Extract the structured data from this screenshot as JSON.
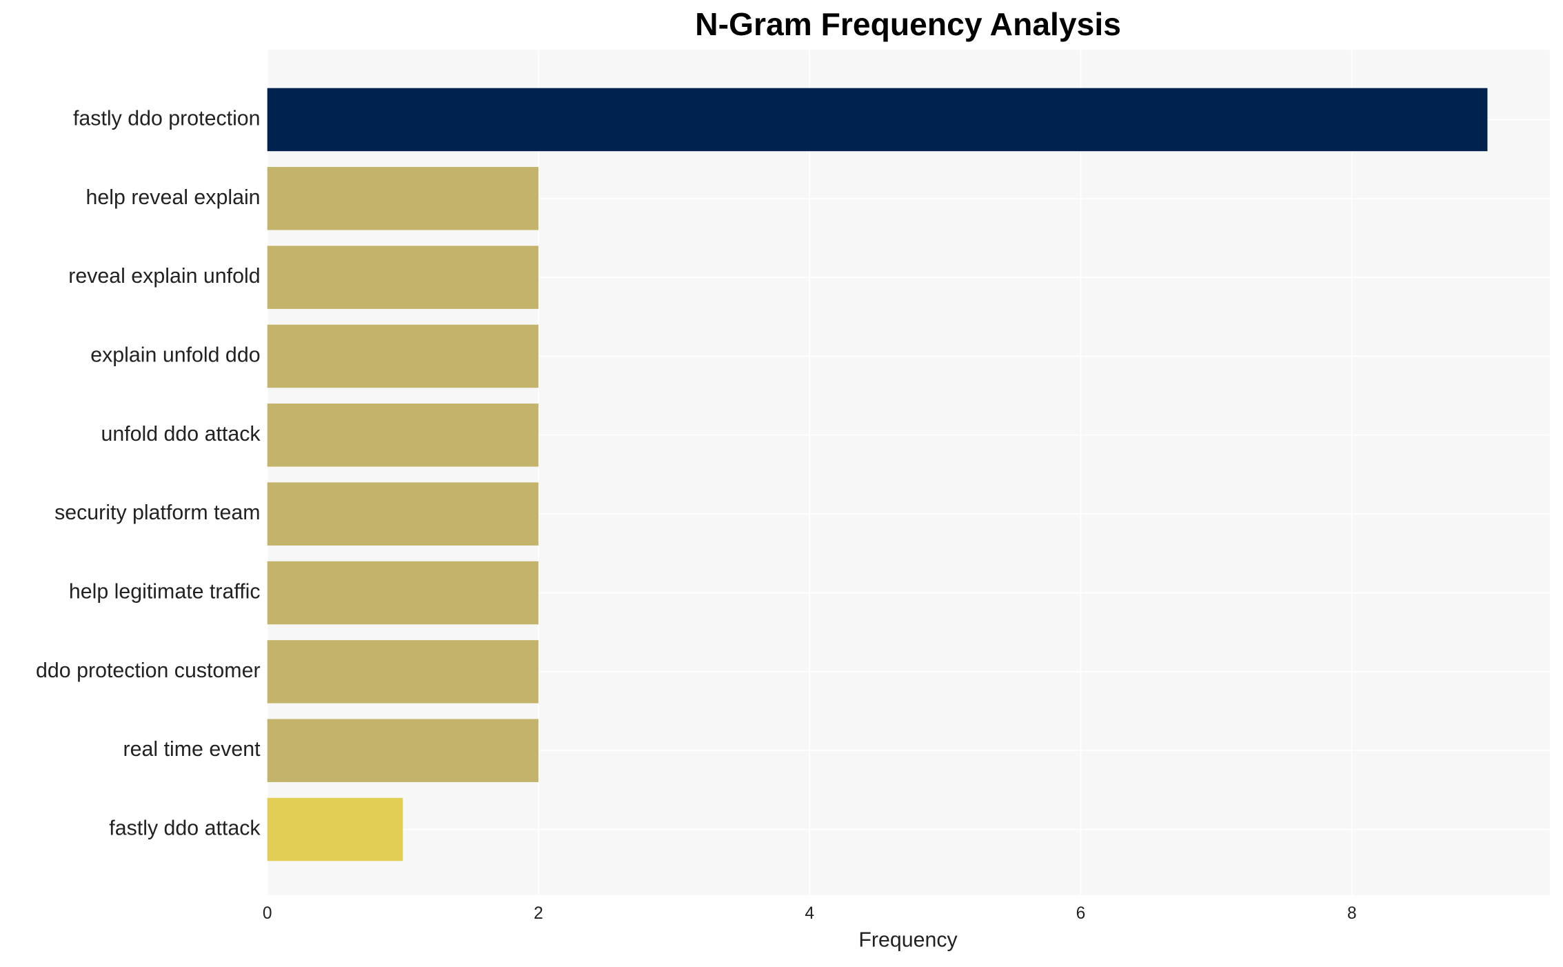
{
  "chart_data": {
    "type": "barh",
    "title": "N-Gram Frequency Analysis",
    "xlabel": "Frequency",
    "categories": [
      "fastly ddo protection",
      "help reveal explain",
      "reveal explain unfold",
      "explain unfold ddo",
      "unfold ddo attack",
      "security platform team",
      "help legitimate traffic",
      "ddo protection customer",
      "real time event",
      "fastly ddo attack"
    ],
    "values": [
      9,
      2,
      2,
      2,
      2,
      2,
      2,
      2,
      2,
      1
    ],
    "colors": [
      "#00224e",
      "#c4b46b",
      "#c4b46b",
      "#c4b46b",
      "#c4b46b",
      "#c4b46b",
      "#c4b46b",
      "#c4b46b",
      "#c4b46b",
      "#e2cd55"
    ],
    "xlim": [
      0,
      9.46
    ],
    "xticks": [
      0,
      2,
      4,
      6,
      8
    ],
    "grid": true
  }
}
